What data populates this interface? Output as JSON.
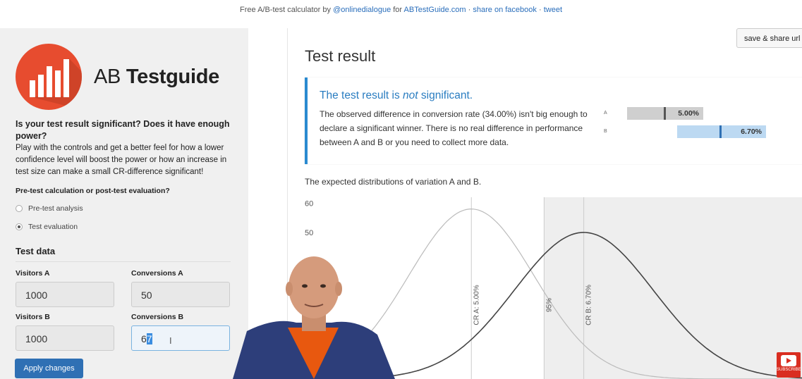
{
  "topbar": {
    "prefix": "Free A/B-test calculator by",
    "author": "@onlinedialogue",
    "for_text": "for",
    "site": "ABTestGuide.com",
    "sep1": "·",
    "facebook": "share on facebook",
    "sep2": "·",
    "tweet": "tweet"
  },
  "sidebar": {
    "logo_ab": "AB",
    "logo_name": "Testguide",
    "question": "Is your test result significant? Does it have enough power?",
    "intro": "Play with the controls and get a better feel for how a lower confidence level will boost the power or how an increase in test size can make a small CR-difference significant!",
    "mode_title": "Pre-test calculation or post-test evaluation?",
    "mode_options": [
      {
        "label": "Pre-test analysis",
        "selected": false
      },
      {
        "label": "Test evaluation",
        "selected": true
      }
    ],
    "test_data_title": "Test data",
    "fields": {
      "visitors_a_label": "Visitors A",
      "visitors_a": "1000",
      "conversions_a_label": "Conversions A",
      "conversions_a": "50",
      "visitors_b_label": "Visitors B",
      "visitors_b": "1000",
      "conversions_b_label": "Conversions B",
      "conversions_b_pre": "6",
      "conversions_b_sel": "7"
    },
    "apply_label": "Apply changes"
  },
  "main": {
    "save_label": "save & share url",
    "title": "Test result",
    "result_head_pre": "The test result is ",
    "result_head_em": "not",
    "result_head_post": " significant.",
    "result_text": "The observed difference in conversion rate (34.00%) isn't big enough to declare a significant winner. There is no real difference in performance between A and B or you need to collect more data.",
    "variant_a": "A",
    "variant_b": "B",
    "bar_a_label": "5.00%",
    "bar_b_label": "6.70%",
    "bar_a_value": 5.0,
    "bar_b_value": 6.7,
    "colors": {
      "accent": "#2a7dc1",
      "bar_a": "#cfcfcf",
      "bar_b": "#bcd9f2",
      "tick_a": "#555555",
      "tick_b": "#2f70b4"
    },
    "dist_title": "The expected distributions of variation A and B."
  },
  "chart_data": {
    "type": "line",
    "title": "The expected distributions of variation A and B.",
    "y_ticks": [
      "60",
      "50"
    ],
    "series": [
      {
        "name": "CR A: 5.00%",
        "mean": 5.0,
        "peak": 58
      },
      {
        "name": "CR B: 6.70%",
        "mean": 6.7,
        "peak": 50
      }
    ],
    "markers": [
      {
        "label": "CR A: 5.00%",
        "x": 5.0
      },
      {
        "label": "95%",
        "x": 6.1
      },
      {
        "label": "CR B: 6.70%",
        "x": 6.7
      }
    ],
    "xlim": [
      2.8,
      10.0
    ],
    "ylim": [
      0,
      62
    ]
  },
  "badge": {
    "subscribe": "SUBSCRIBE"
  }
}
